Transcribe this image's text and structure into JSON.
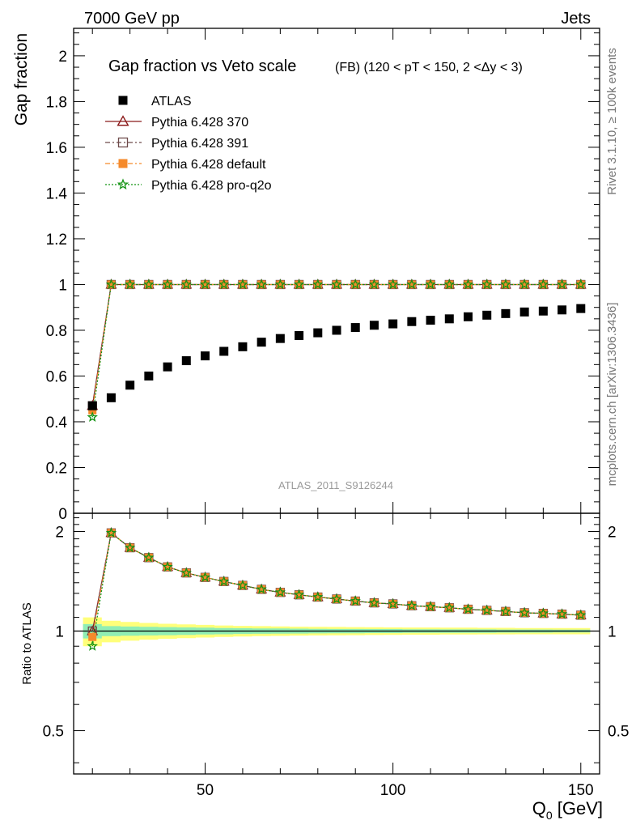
{
  "header": {
    "left": "7000 GeV pp",
    "right": "Jets"
  },
  "side_labels": {
    "rivet": "Rivet 3.1.10, ≥ 100k events",
    "mcplots": "mcplots.cern.ch [arXiv:1306.3436]"
  },
  "chart_data": [
    {
      "type": "scatter",
      "title": "Gap fraction vs Veto scale",
      "subtitle": "(FB) (120 < pT < 150, 2 <Δy < 3)",
      "ylabel": "Gap fraction",
      "xlabel": "Q0 [GeV]",
      "xlim": [
        15,
        155
      ],
      "ylim": [
        0,
        2.12
      ],
      "yticks": [
        0,
        0.2,
        0.4,
        0.6,
        0.8,
        1,
        1.2,
        1.4,
        1.6,
        1.8,
        2
      ],
      "yticklabels": [
        "0",
        "0.2",
        "0.4",
        "0.6",
        "0.8",
        "1",
        "1.2",
        "1.4",
        "1.6",
        "1.8",
        "2"
      ],
      "watermark": "ATLAS_2011_S9126244",
      "legend_position": "top-left",
      "x": [
        20,
        25,
        30,
        35,
        40,
        45,
        50,
        55,
        60,
        65,
        70,
        75,
        80,
        85,
        90,
        95,
        100,
        105,
        110,
        115,
        120,
        125,
        130,
        135,
        140,
        145,
        150
      ],
      "series": [
        {
          "name": "ATLAS",
          "color": "#000000",
          "marker": "square-filled",
          "line": "none",
          "values": [
            0.47,
            0.505,
            0.56,
            0.6,
            0.64,
            0.667,
            0.688,
            0.708,
            0.728,
            0.748,
            0.764,
            0.777,
            0.789,
            0.8,
            0.812,
            0.822,
            0.828,
            0.838,
            0.844,
            0.85,
            0.859,
            0.866,
            0.873,
            0.88,
            0.884,
            0.889,
            0.895
          ]
        },
        {
          "name": "Pythia 6.428 370",
          "color": "#8b1a1a",
          "marker": "triangle-open",
          "line": "solid",
          "values": [
            0.47,
            1,
            1,
            1,
            1,
            1,
            1,
            1,
            1,
            1,
            1,
            1,
            1,
            1,
            1,
            1,
            1,
            1,
            1,
            1,
            1,
            1,
            1,
            1,
            1,
            1,
            1
          ]
        },
        {
          "name": "Pythia 6.428 391",
          "color": "#6e4b4b",
          "marker": "square-open",
          "line": "dashdot",
          "values": [
            0.47,
            1,
            1,
            1,
            1,
            1,
            1,
            1,
            1,
            1,
            1,
            1,
            1,
            1,
            1,
            1,
            1,
            1,
            1,
            1,
            1,
            1,
            1,
            1,
            1,
            1,
            1
          ]
        },
        {
          "name": "Pythia 6.428 default",
          "color": "#f58a2b",
          "marker": "square-filled",
          "line": "dashdot",
          "values": [
            0.45,
            1,
            1,
            1,
            1,
            1,
            1,
            1,
            1,
            1,
            1,
            1,
            1,
            1,
            1,
            1,
            1,
            1,
            1,
            1,
            1,
            1,
            1,
            1,
            1,
            1,
            1
          ]
        },
        {
          "name": "Pythia 6.428 pro-q2o",
          "color": "#139313",
          "marker": "star-open",
          "line": "dotted",
          "values": [
            0.42,
            1,
            1,
            1,
            1,
            1,
            1,
            1,
            1,
            1,
            1,
            1,
            1,
            1,
            1,
            1,
            1,
            1,
            1,
            1,
            1,
            1,
            1,
            1,
            1,
            1,
            1
          ]
        }
      ]
    },
    {
      "type": "line",
      "ylabel": "Ratio to ATLAS",
      "xlabel": "Q0 [GeV]",
      "xlim": [
        15,
        155
      ],
      "ylim": [
        0.37,
        2.27
      ],
      "yticks": [
        0.5,
        1,
        2
      ],
      "yticklabels": [
        "0.5",
        "1",
        "2"
      ],
      "xticks": [
        50,
        100,
        150
      ],
      "xticklabels": [
        "50",
        "100",
        "150"
      ],
      "x": [
        20,
        25,
        30,
        35,
        40,
        45,
        50,
        55,
        60,
        65,
        70,
        75,
        80,
        85,
        90,
        95,
        100,
        105,
        110,
        115,
        120,
        125,
        130,
        135,
        140,
        145,
        150
      ],
      "band_inner_halfwidth": [
        0.05,
        0.035,
        0.032,
        0.03,
        0.028,
        0.026,
        0.024,
        0.022,
        0.02,
        0.019,
        0.018,
        0.017,
        0.016,
        0.015,
        0.015,
        0.014,
        0.014,
        0.013,
        0.013,
        0.012,
        0.012,
        0.012,
        0.011,
        0.011,
        0.011,
        0.01,
        0.01
      ],
      "band_outer_halfwidth": [
        0.1,
        0.075,
        0.065,
        0.058,
        0.052,
        0.048,
        0.044,
        0.04,
        0.037,
        0.035,
        0.033,
        0.031,
        0.03,
        0.029,
        0.028,
        0.027,
        0.026,
        0.025,
        0.025,
        0.024,
        0.024,
        0.023,
        0.023,
        0.022,
        0.022,
        0.022,
        0.022
      ],
      "band_colors": {
        "inner": "#90eeb4",
        "outer": "#ffff7a"
      },
      "series": [
        {
          "name": "Pythia 6.428 370",
          "color": "#8b1a1a",
          "marker": "triangle-open",
          "line": "solid",
          "values": [
            1.0,
            1.98,
            1.786,
            1.667,
            1.563,
            1.499,
            1.453,
            1.412,
            1.374,
            1.337,
            1.309,
            1.287,
            1.267,
            1.25,
            1.232,
            1.217,
            1.208,
            1.193,
            1.185,
            1.176,
            1.164,
            1.155,
            1.146,
            1.136,
            1.131,
            1.125,
            1.117
          ]
        },
        {
          "name": "Pythia 6.428 391",
          "color": "#6e4b4b",
          "marker": "square-open",
          "line": "dashdot",
          "values": [
            1.0,
            1.98,
            1.786,
            1.667,
            1.563,
            1.499,
            1.453,
            1.412,
            1.374,
            1.337,
            1.309,
            1.287,
            1.267,
            1.25,
            1.232,
            1.217,
            1.208,
            1.193,
            1.185,
            1.176,
            1.164,
            1.155,
            1.146,
            1.136,
            1.131,
            1.125,
            1.117
          ]
        },
        {
          "name": "Pythia 6.428 default",
          "color": "#f58a2b",
          "marker": "square-filled",
          "line": "dashdot",
          "values": [
            0.96,
            1.98,
            1.786,
            1.667,
            1.563,
            1.499,
            1.453,
            1.412,
            1.374,
            1.337,
            1.309,
            1.287,
            1.267,
            1.25,
            1.232,
            1.217,
            1.208,
            1.193,
            1.185,
            1.176,
            1.164,
            1.155,
            1.146,
            1.136,
            1.131,
            1.125,
            1.117
          ]
        },
        {
          "name": "Pythia 6.428 pro-q2o",
          "color": "#139313",
          "marker": "star-open",
          "line": "dotted",
          "values": [
            0.9,
            1.98,
            1.786,
            1.667,
            1.563,
            1.499,
            1.453,
            1.412,
            1.374,
            1.337,
            1.309,
            1.287,
            1.267,
            1.25,
            1.232,
            1.217,
            1.208,
            1.193,
            1.185,
            1.176,
            1.164,
            1.155,
            1.146,
            1.136,
            1.131,
            1.125,
            1.117
          ]
        }
      ]
    }
  ]
}
